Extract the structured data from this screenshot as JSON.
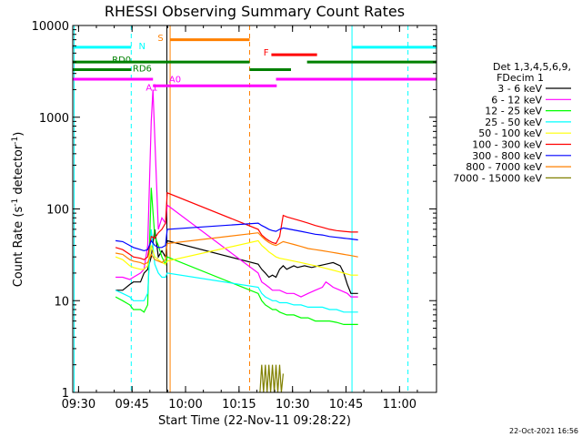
{
  "chart_data": {
    "type": "line",
    "title": "RHESSI Observing Summary Count Rates",
    "xlabel": "Start Time (22-Nov-11 09:28:22)",
    "ylabel": "Count Rate (s⁻¹ detector⁻¹)",
    "ylabel_parts": [
      "Count Rate (s",
      "-1",
      " detector",
      "-1",
      ")"
    ],
    "y_scale": "log",
    "ylim": [
      1,
      10000
    ],
    "xlim_minutes": [
      0,
      102
    ],
    "x_ticks": [
      {
        "minute": 1.63,
        "label": "09:30"
      },
      {
        "minute": 16.63,
        "label": "09:45"
      },
      {
        "minute": 31.63,
        "label": "10:00"
      },
      {
        "minute": 46.63,
        "label": "10:15"
      },
      {
        "minute": 61.63,
        "label": "10:30"
      },
      {
        "minute": 76.63,
        "label": "10:45"
      },
      {
        "minute": 91.63,
        "label": "11:00"
      }
    ],
    "y_ticks": [
      {
        "value": 1,
        "label": "1"
      },
      {
        "value": 10,
        "label": "10"
      },
      {
        "value": 100,
        "label": "100"
      },
      {
        "value": 1000,
        "label": "1000"
      },
      {
        "value": 10000,
        "label": "10000"
      }
    ],
    "legend": {
      "header": [
        "Det 1,3,4,5,6,9,",
        "FDecim 1"
      ],
      "position": "right"
    },
    "series": [
      {
        "name": "3 - 6 keV",
        "color": "#000000",
        "points": [
          [
            12,
            13
          ],
          [
            14,
            13
          ],
          [
            16,
            15
          ],
          [
            17,
            16
          ],
          [
            19,
            16
          ],
          [
            20,
            20
          ],
          [
            21,
            22
          ],
          [
            22,
            30
          ],
          [
            23,
            60
          ],
          [
            24,
            30
          ],
          [
            25,
            35
          ],
          [
            26,
            30
          ],
          [
            26.5,
            45
          ],
          [
            52,
            25
          ],
          [
            53,
            22
          ],
          [
            54,
            20
          ],
          [
            55,
            18
          ],
          [
            56,
            19
          ],
          [
            57,
            18
          ],
          [
            58,
            22
          ],
          [
            59,
            24
          ],
          [
            60,
            22
          ],
          [
            61,
            23
          ],
          [
            62,
            24
          ],
          [
            63,
            23
          ],
          [
            65,
            24
          ],
          [
            67,
            23
          ],
          [
            69,
            24
          ],
          [
            71,
            25
          ],
          [
            73,
            26
          ],
          [
            75,
            24
          ],
          [
            76,
            20
          ],
          [
            77,
            15
          ],
          [
            78,
            12
          ],
          [
            79,
            12
          ],
          [
            80,
            12
          ]
        ]
      },
      {
        "name": "6 - 12 keV",
        "color": "#ff00ff",
        "points": [
          [
            12,
            18
          ],
          [
            14,
            18
          ],
          [
            16,
            17
          ],
          [
            17,
            18
          ],
          [
            19,
            20
          ],
          [
            20,
            22
          ],
          [
            21,
            40
          ],
          [
            22,
            900
          ],
          [
            22.5,
            2000
          ],
          [
            23,
            600
          ],
          [
            24,
            60
          ],
          [
            25,
            80
          ],
          [
            26,
            70
          ],
          [
            26.5,
            110
          ],
          [
            52,
            20
          ],
          [
            53,
            16
          ],
          [
            54,
            15
          ],
          [
            55,
            14
          ],
          [
            56,
            13
          ],
          [
            57,
            13
          ],
          [
            58,
            13
          ],
          [
            60,
            12
          ],
          [
            62,
            12
          ],
          [
            64,
            11
          ],
          [
            66,
            12
          ],
          [
            68,
            13
          ],
          [
            70,
            14
          ],
          [
            71,
            16
          ],
          [
            72,
            15
          ],
          [
            73,
            14
          ],
          [
            75,
            13
          ],
          [
            77,
            12
          ],
          [
            78,
            11
          ],
          [
            80,
            11
          ]
        ]
      },
      {
        "name": "12 - 25 keV",
        "color": "#00ff00",
        "points": [
          [
            12,
            11
          ],
          [
            14,
            10
          ],
          [
            16,
            9
          ],
          [
            17,
            8
          ],
          [
            19,
            8
          ],
          [
            20,
            7.5
          ],
          [
            21,
            9
          ],
          [
            22,
            170
          ],
          [
            23,
            50
          ],
          [
            24,
            40
          ],
          [
            25,
            30
          ],
          [
            26,
            25
          ],
          [
            26.5,
            30
          ],
          [
            52,
            12
          ],
          [
            53,
            10
          ],
          [
            54,
            9
          ],
          [
            55,
            8.5
          ],
          [
            56,
            8
          ],
          [
            57,
            8
          ],
          [
            58,
            7.5
          ],
          [
            60,
            7
          ],
          [
            62,
            7
          ],
          [
            64,
            6.5
          ],
          [
            66,
            6.5
          ],
          [
            68,
            6
          ],
          [
            70,
            6
          ],
          [
            72,
            6
          ],
          [
            74,
            5.8
          ],
          [
            76,
            5.5
          ],
          [
            78,
            5.5
          ],
          [
            80,
            5.5
          ]
        ]
      },
      {
        "name": "25 - 50 keV",
        "color": "#00ffff",
        "points": [
          [
            12,
            13
          ],
          [
            14,
            12
          ],
          [
            16,
            11
          ],
          [
            17,
            10
          ],
          [
            19,
            10
          ],
          [
            20,
            10
          ],
          [
            21,
            12
          ],
          [
            22,
            60
          ],
          [
            23,
            25
          ],
          [
            24,
            20
          ],
          [
            25,
            18
          ],
          [
            26,
            18
          ],
          [
            26.5,
            20
          ],
          [
            52,
            14
          ],
          [
            53,
            12
          ],
          [
            54,
            11
          ],
          [
            55,
            10.5
          ],
          [
            56,
            10
          ],
          [
            57,
            10
          ],
          [
            58,
            9.5
          ],
          [
            60,
            9.5
          ],
          [
            62,
            9
          ],
          [
            64,
            9
          ],
          [
            66,
            8.5
          ],
          [
            68,
            8.5
          ],
          [
            70,
            8.5
          ],
          [
            72,
            8
          ],
          [
            74,
            8
          ],
          [
            76,
            7.5
          ],
          [
            78,
            7.5
          ],
          [
            80,
            7.5
          ]
        ]
      },
      {
        "name": "50 - 100 keV",
        "color": "#ffff00",
        "points": [
          [
            12,
            30
          ],
          [
            14,
            28
          ],
          [
            16,
            24
          ],
          [
            17,
            23
          ],
          [
            19,
            22
          ],
          [
            20,
            22
          ],
          [
            21,
            24
          ],
          [
            22,
            40
          ],
          [
            23,
            30
          ],
          [
            24,
            28
          ],
          [
            25,
            26
          ],
          [
            26,
            25
          ],
          [
            26.5,
            27
          ],
          [
            52,
            45
          ],
          [
            53,
            40
          ],
          [
            54,
            37
          ],
          [
            55,
            34
          ],
          [
            56,
            32
          ],
          [
            57,
            30
          ],
          [
            58,
            29
          ],
          [
            60,
            28
          ],
          [
            62,
            27
          ],
          [
            64,
            26
          ],
          [
            66,
            25
          ],
          [
            68,
            24
          ],
          [
            70,
            23
          ],
          [
            72,
            22
          ],
          [
            74,
            21
          ],
          [
            76,
            20
          ],
          [
            78,
            19
          ],
          [
            80,
            19
          ]
        ]
      },
      {
        "name": "100 - 300 keV",
        "color": "#ff0000",
        "points": [
          [
            12,
            38
          ],
          [
            14,
            36
          ],
          [
            16,
            32
          ],
          [
            17,
            30
          ],
          [
            19,
            29
          ],
          [
            20,
            28
          ],
          [
            21,
            30
          ],
          [
            22,
            50
          ],
          [
            23,
            48
          ],
          [
            24,
            55
          ],
          [
            25,
            60
          ],
          [
            26,
            70
          ],
          [
            26.5,
            150
          ],
          [
            52,
            60
          ],
          [
            53,
            52
          ],
          [
            54,
            48
          ],
          [
            55,
            45
          ],
          [
            56,
            43
          ],
          [
            57,
            42
          ],
          [
            58,
            50
          ],
          [
            59,
            85
          ],
          [
            60,
            82
          ],
          [
            62,
            78
          ],
          [
            64,
            74
          ],
          [
            66,
            70
          ],
          [
            68,
            66
          ],
          [
            70,
            63
          ],
          [
            72,
            60
          ],
          [
            74,
            58
          ],
          [
            76,
            57
          ],
          [
            78,
            56
          ],
          [
            80,
            56
          ]
        ]
      },
      {
        "name": "300 - 800 keV",
        "color": "#0000ff",
        "points": [
          [
            12,
            45
          ],
          [
            14,
            44
          ],
          [
            16,
            40
          ],
          [
            17,
            38
          ],
          [
            19,
            36
          ],
          [
            20,
            35
          ],
          [
            21,
            36
          ],
          [
            22,
            45
          ],
          [
            23,
            40
          ],
          [
            24,
            38
          ],
          [
            25,
            38
          ],
          [
            26,
            40
          ],
          [
            26.5,
            60
          ],
          [
            52,
            70
          ],
          [
            53,
            66
          ],
          [
            54,
            63
          ],
          [
            55,
            60
          ],
          [
            56,
            58
          ],
          [
            57,
            57
          ],
          [
            58,
            60
          ],
          [
            59,
            62
          ],
          [
            60,
            61
          ],
          [
            62,
            59
          ],
          [
            64,
            57
          ],
          [
            66,
            55
          ],
          [
            68,
            53
          ],
          [
            70,
            52
          ],
          [
            72,
            50
          ],
          [
            74,
            49
          ],
          [
            76,
            48
          ],
          [
            78,
            47
          ],
          [
            80,
            46
          ]
        ]
      },
      {
        "name": "800 - 7000 keV",
        "color": "#ff8000",
        "points": [
          [
            12,
            33
          ],
          [
            14,
            32
          ],
          [
            16,
            28
          ],
          [
            17,
            27
          ],
          [
            19,
            26
          ],
          [
            20,
            25
          ],
          [
            21,
            26
          ],
          [
            22,
            32
          ],
          [
            23,
            28
          ],
          [
            24,
            27
          ],
          [
            25,
            26
          ],
          [
            26,
            28
          ],
          [
            26.5,
            42
          ],
          [
            52,
            55
          ],
          [
            53,
            50
          ],
          [
            54,
            46
          ],
          [
            55,
            43
          ],
          [
            56,
            41
          ],
          [
            57,
            40
          ],
          [
            58,
            42
          ],
          [
            59,
            44
          ],
          [
            60,
            43
          ],
          [
            62,
            41
          ],
          [
            64,
            39
          ],
          [
            66,
            37
          ],
          [
            68,
            36
          ],
          [
            70,
            35
          ],
          [
            72,
            34
          ],
          [
            74,
            33
          ],
          [
            76,
            32
          ],
          [
            78,
            31
          ],
          [
            80,
            30
          ]
        ]
      },
      {
        "name": "7000 - 15000 keV",
        "color": "#808000",
        "points": [
          [
            52.5,
            1
          ],
          [
            53,
            2
          ],
          [
            53.5,
            1
          ],
          [
            54,
            2
          ],
          [
            54.5,
            1
          ],
          [
            55,
            2
          ],
          [
            55.5,
            1
          ],
          [
            56,
            2
          ],
          [
            56.5,
            1
          ],
          [
            57,
            2
          ],
          [
            57.5,
            1
          ],
          [
            58,
            2
          ],
          [
            58.5,
            1
          ],
          [
            59,
            1.6
          ]
        ]
      }
    ],
    "state_bars": [
      {
        "label": "N",
        "color": "#00ffff",
        "value": 5800,
        "segments": [
          [
            0,
            16.4
          ],
          [
            78.3,
            102
          ]
        ]
      },
      {
        "label": "S",
        "color": "#ff8000",
        "value": 7000,
        "segments": [
          [
            27.4,
            49.6
          ]
        ]
      },
      {
        "label": "F",
        "color": "#ff0000",
        "value": 4800,
        "segments": [
          [
            55.7,
            68.5
          ]
        ]
      },
      {
        "label": "RD0",
        "color": "#008000",
        "value": 4000,
        "segments": [
          [
            0,
            49.6
          ],
          [
            65.7,
            102
          ]
        ]
      },
      {
        "label": "RD6",
        "color": "#008000",
        "value": 3300,
        "segments": [
          [
            0,
            16.4
          ],
          [
            49.6,
            61.2
          ]
        ]
      },
      {
        "label": "A0",
        "color": "#ff00ff",
        "value": 2600,
        "segments": [
          [
            0,
            22.5
          ],
          [
            57,
            102
          ]
        ]
      },
      {
        "label": "A1",
        "color": "#ff00ff",
        "value": 2200,
        "segments": [
          [
            22.5,
            57.2
          ]
        ]
      }
    ],
    "vlines": [
      {
        "minute": 0.4,
        "color": "#00ffff",
        "style": "solid"
      },
      {
        "minute": 16.4,
        "color": "#00ffff",
        "style": "dashed"
      },
      {
        "minute": 26.4,
        "color": "#000000",
        "style": "solid"
      },
      {
        "minute": 27.3,
        "color": "#ff8000",
        "style": "solid"
      },
      {
        "minute": 49.6,
        "color": "#ff8000",
        "style": "dashed"
      },
      {
        "minute": 78.3,
        "color": "#00ffff",
        "style": "solid"
      },
      {
        "minute": 94.0,
        "color": "#00ffff",
        "style": "dashed"
      }
    ],
    "footer": "22-Oct-2021 16:56"
  }
}
